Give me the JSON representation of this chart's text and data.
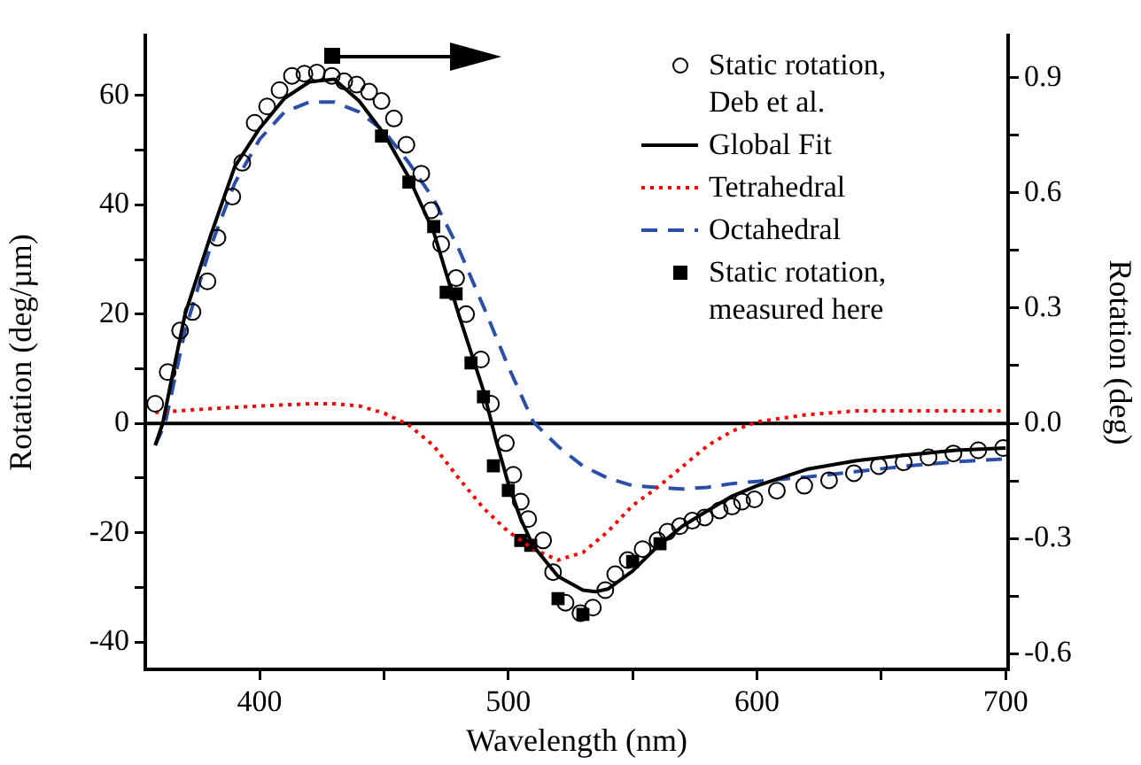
{
  "chart_data": {
    "type": "line",
    "xlabel": "Wavelength (nm)",
    "ylabel": "Rotation (deg/µm)",
    "y2label": "Rotation (deg)",
    "xlim": [
      354,
      701
    ],
    "ylim": [
      -45,
      71
    ],
    "y2lim": [
      -0.641,
      1.01
    ],
    "xticks": [
      400,
      {
        "value": 450,
        "label": null
      },
      500,
      {
        "value": 550,
        "label": null
      },
      600,
      {
        "value": 650,
        "label": null
      },
      700
    ],
    "yticks": [
      -40,
      {
        "value": -30,
        "label": null
      },
      -20,
      {
        "value": -10,
        "label": null
      },
      0,
      {
        "value": 10,
        "label": null
      },
      20,
      {
        "value": 30,
        "label": null
      },
      40,
      {
        "value": 50,
        "label": null
      },
      60
    ],
    "y2ticks": [
      -0.6,
      {
        "value": -0.45,
        "label": null
      },
      -0.3,
      {
        "value": -0.15,
        "label": null
      },
      {
        "value": 0,
        "label": "0.0"
      },
      {
        "value": 0.15,
        "label": null
      },
      0.3,
      {
        "value": 0.45,
        "label": null
      },
      0.6,
      {
        "value": 0.75,
        "label": null
      },
      0.9
    ],
    "grid": false,
    "legend": "top right",
    "ref_lines": [
      {
        "axis": "y",
        "value": 0,
        "color": "#000000",
        "line_style": "solid"
      }
    ],
    "series": [
      {
        "name": "Static rotation, Deb et al.",
        "type": "scatter",
        "marker": "circle",
        "color": "#000000",
        "x": [
          358,
          363,
          368,
          373,
          379,
          383,
          389,
          393,
          398,
          403,
          408,
          413,
          418,
          423,
          429,
          434,
          439,
          444,
          449,
          454,
          459,
          465,
          469,
          473,
          479,
          483,
          489,
          493,
          499,
          502,
          505,
          508,
          514,
          518,
          523,
          529,
          534,
          539,
          543,
          548,
          554,
          560,
          564,
          569,
          574,
          579,
          585,
          590,
          594,
          599,
          608,
          619,
          629,
          639,
          649,
          659,
          669,
          679,
          689,
          699
        ],
        "values": [
          3.6,
          9.4,
          17,
          20.4,
          26,
          34,
          41.5,
          47.7,
          55,
          58,
          61,
          63.6,
          64,
          64.2,
          63.6,
          62.6,
          62,
          60.7,
          59,
          55.8,
          51,
          45.7,
          39,
          32.8,
          26.6,
          20,
          11.7,
          3.6,
          -3.6,
          -9.4,
          -14.3,
          -17.5,
          -21.4,
          -27.2,
          -32.8,
          -34.7,
          -33.7,
          -30.5,
          -27.6,
          -25,
          -23,
          -21.4,
          -19.8,
          -18.8,
          -17.8,
          -17.2,
          -15.9,
          -15.2,
          -14.3,
          -13.9,
          -12.3,
          -11.4,
          -10.4,
          -9.1,
          -7.8,
          -7.1,
          -6.2,
          -5.5,
          -4.9,
          -4.5
        ]
      },
      {
        "name": "Global Fit",
        "type": "line",
        "marker": "none",
        "line_style": "solid",
        "color": "#000000",
        "x": [
          358,
          361,
          365,
          370,
          380,
          390,
          400,
          410,
          420,
          430,
          440,
          450,
          460,
          470,
          480,
          490,
          495,
          500,
          505,
          510,
          520,
          530,
          535,
          540,
          550,
          560,
          570,
          580,
          590,
          600,
          620,
          640,
          660,
          680,
          700
        ],
        "values": [
          -4,
          0,
          9,
          20,
          34,
          47,
          54,
          59.5,
          62.5,
          63,
          59,
          53,
          45,
          35,
          20,
          6,
          -3,
          -11,
          -17.5,
          -22.4,
          -28,
          -30.5,
          -30.8,
          -30.3,
          -27,
          -22.5,
          -18.8,
          -16,
          -13.3,
          -11.4,
          -8.4,
          -6.8,
          -5.8,
          -4.9,
          -4.5
        ]
      },
      {
        "name": "Tetrahedral",
        "type": "line",
        "marker": "none",
        "line_style": "dotted",
        "color": "#ff0000",
        "x": [
          358,
          380,
          400,
          420,
          430,
          440,
          450,
          460,
          470,
          480,
          490,
          500,
          510,
          520,
          530,
          540,
          550,
          560,
          570,
          580,
          590,
          600,
          620,
          640,
          700
        ],
        "values": [
          2,
          2.7,
          3.2,
          3.6,
          3.6,
          3.2,
          1.9,
          -0.3,
          -4.1,
          -10,
          -15.5,
          -19.8,
          -23,
          -25,
          -23.6,
          -19.8,
          -15,
          -11.7,
          -7.9,
          -4.1,
          -1.4,
          0.3,
          1.6,
          2.3,
          2.3
        ]
      },
      {
        "name": "Octahedral",
        "type": "line",
        "marker": "none",
        "line_style": "dashed",
        "color": "#2a4fa8",
        "x": [
          358,
          362,
          370,
          380,
          390,
          400,
          410,
          420,
          430,
          440,
          450,
          460,
          470,
          480,
          490,
          500,
          510,
          520,
          530,
          540,
          550,
          560,
          570,
          580,
          590,
          600,
          620,
          640,
          660,
          680,
          700
        ],
        "values": [
          -4,
          0,
          17,
          32,
          44,
          52,
          57,
          58.8,
          58.8,
          57,
          53.5,
          47.7,
          41,
          32,
          21.4,
          10.4,
          0.3,
          -4.2,
          -7.8,
          -10,
          -11.4,
          -11.7,
          -12,
          -11.7,
          -11,
          -10.6,
          -9.8,
          -8.8,
          -7.8,
          -7,
          -6.5
        ]
      },
      {
        "name": "Static rotation, measured here",
        "type": "scatter",
        "marker": "square",
        "axis": "y2",
        "color": "#000000",
        "x": [
          449,
          460,
          470,
          475,
          479,
          485,
          490,
          494,
          500,
          505,
          509,
          520,
          530,
          550,
          561
        ],
        "values": [
          0.748,
          0.628,
          0.512,
          0.341,
          0.337,
          0.157,
          0.069,
          -0.111,
          -0.175,
          -0.305,
          -0.318,
          -0.457,
          -0.498,
          -0.36,
          -0.314
        ]
      }
    ]
  }
}
